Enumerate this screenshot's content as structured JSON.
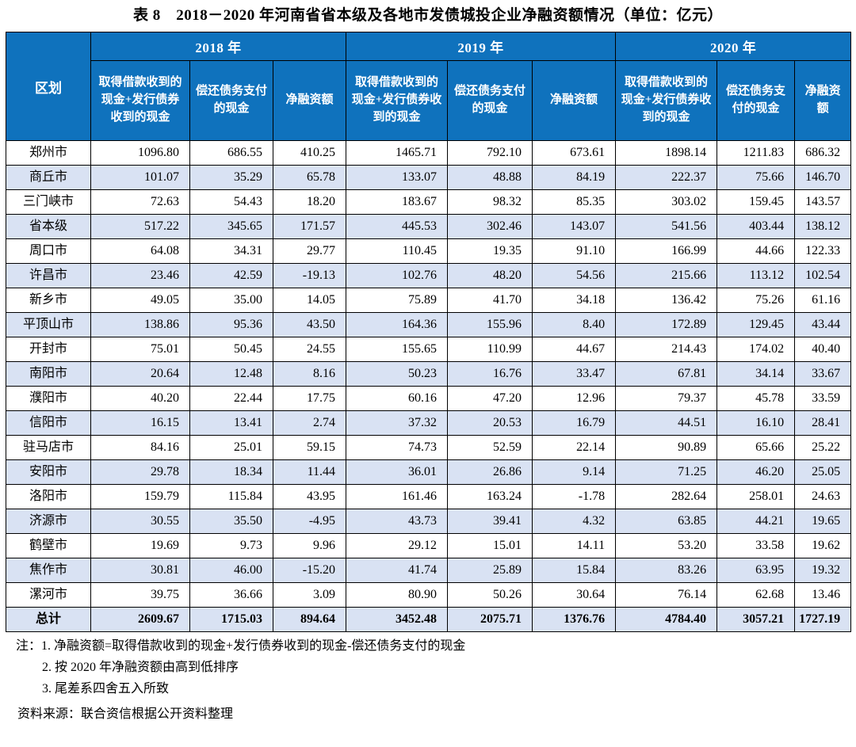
{
  "title": "表 8　2018－2020 年河南省省本级及各地市发债城投企业净融资额情况（单位：亿元）",
  "table": {
    "corner_header": "区划",
    "year_groups": [
      {
        "label": "2018 年",
        "columns": [
          "取得借款收到的现金+发行债券收到的现金",
          "偿还债务支付的现金",
          "净融资额"
        ]
      },
      {
        "label": "2019 年",
        "columns": [
          "取得借款收到的现金+发行债券收到的现金",
          "偿还债务支付的现金",
          "净融资额"
        ]
      },
      {
        "label": "2020 年",
        "columns": [
          "取得借款收到的现金+发行债券收到的现金",
          "偿还债务支付的现金",
          "净融资额"
        ]
      }
    ],
    "rows": [
      {
        "name": "郑州市",
        "values": [
          "1096.80",
          "686.55",
          "410.25",
          "1465.71",
          "792.10",
          "673.61",
          "1898.14",
          "1211.83",
          "686.32"
        ]
      },
      {
        "name": "商丘市",
        "values": [
          "101.07",
          "35.29",
          "65.78",
          "133.07",
          "48.88",
          "84.19",
          "222.37",
          "75.66",
          "146.70"
        ]
      },
      {
        "name": "三门峡市",
        "values": [
          "72.63",
          "54.43",
          "18.20",
          "183.67",
          "98.32",
          "85.35",
          "303.02",
          "159.45",
          "143.57"
        ]
      },
      {
        "name": "省本级",
        "values": [
          "517.22",
          "345.65",
          "171.57",
          "445.53",
          "302.46",
          "143.07",
          "541.56",
          "403.44",
          "138.12"
        ]
      },
      {
        "name": "周口市",
        "values": [
          "64.08",
          "34.31",
          "29.77",
          "110.45",
          "19.35",
          "91.10",
          "166.99",
          "44.66",
          "122.33"
        ]
      },
      {
        "name": "许昌市",
        "values": [
          "23.46",
          "42.59",
          "-19.13",
          "102.76",
          "48.20",
          "54.56",
          "215.66",
          "113.12",
          "102.54"
        ]
      },
      {
        "name": "新乡市",
        "values": [
          "49.05",
          "35.00",
          "14.05",
          "75.89",
          "41.70",
          "34.18",
          "136.42",
          "75.26",
          "61.16"
        ]
      },
      {
        "name": "平顶山市",
        "values": [
          "138.86",
          "95.36",
          "43.50",
          "164.36",
          "155.96",
          "8.40",
          "172.89",
          "129.45",
          "43.44"
        ]
      },
      {
        "name": "开封市",
        "values": [
          "75.01",
          "50.45",
          "24.55",
          "155.65",
          "110.99",
          "44.67",
          "214.43",
          "174.02",
          "40.40"
        ]
      },
      {
        "name": "南阳市",
        "values": [
          "20.64",
          "12.48",
          "8.16",
          "50.23",
          "16.76",
          "33.47",
          "67.81",
          "34.14",
          "33.67"
        ]
      },
      {
        "name": "濮阳市",
        "values": [
          "40.20",
          "22.44",
          "17.75",
          "60.16",
          "47.20",
          "12.96",
          "79.37",
          "45.78",
          "33.59"
        ]
      },
      {
        "name": "信阳市",
        "values": [
          "16.15",
          "13.41",
          "2.74",
          "37.32",
          "20.53",
          "16.79",
          "44.51",
          "16.10",
          "28.41"
        ]
      },
      {
        "name": "驻马店市",
        "values": [
          "84.16",
          "25.01",
          "59.15",
          "74.73",
          "52.59",
          "22.14",
          "90.89",
          "65.66",
          "25.22"
        ]
      },
      {
        "name": "安阳市",
        "values": [
          "29.78",
          "18.34",
          "11.44",
          "36.01",
          "26.86",
          "9.14",
          "71.25",
          "46.20",
          "25.05"
        ]
      },
      {
        "name": "洛阳市",
        "values": [
          "159.79",
          "115.84",
          "43.95",
          "161.46",
          "163.24",
          "-1.78",
          "282.64",
          "258.01",
          "24.63"
        ]
      },
      {
        "name": "济源市",
        "values": [
          "30.55",
          "35.50",
          "-4.95",
          "43.73",
          "39.41",
          "4.32",
          "63.85",
          "44.21",
          "19.65"
        ]
      },
      {
        "name": "鹤壁市",
        "values": [
          "19.69",
          "9.73",
          "9.96",
          "29.12",
          "15.01",
          "14.11",
          "53.20",
          "33.58",
          "19.62"
        ]
      },
      {
        "name": "焦作市",
        "values": [
          "30.81",
          "46.00",
          "-15.20",
          "41.74",
          "25.89",
          "15.84",
          "83.26",
          "63.95",
          "19.32"
        ]
      },
      {
        "name": "漯河市",
        "values": [
          "39.75",
          "36.66",
          "3.09",
          "80.90",
          "50.26",
          "30.64",
          "76.14",
          "62.68",
          "13.46"
        ]
      }
    ],
    "total_row": {
      "name": "总计",
      "values": [
        "2609.67",
        "1715.03",
        "894.64",
        "3452.48",
        "2075.71",
        "1376.76",
        "4784.40",
        "3057.21",
        "1727.19"
      ]
    }
  },
  "notes": {
    "label": "注：",
    "items": [
      "1. 净融资额=取得借款收到的现金+发行债券收到的现金-偿还债务支付的现金",
      "2. 按 2020 年净融资额由高到低排序",
      "3. 尾差系四舍五入所致"
    ]
  },
  "source": "资料来源：联合资信根据公开资料整理",
  "colors": {
    "header_bg": "#0F72BD",
    "header_text": "#FFFFFF",
    "stripe_bg": "#D9E2F3",
    "border": "#000000"
  }
}
